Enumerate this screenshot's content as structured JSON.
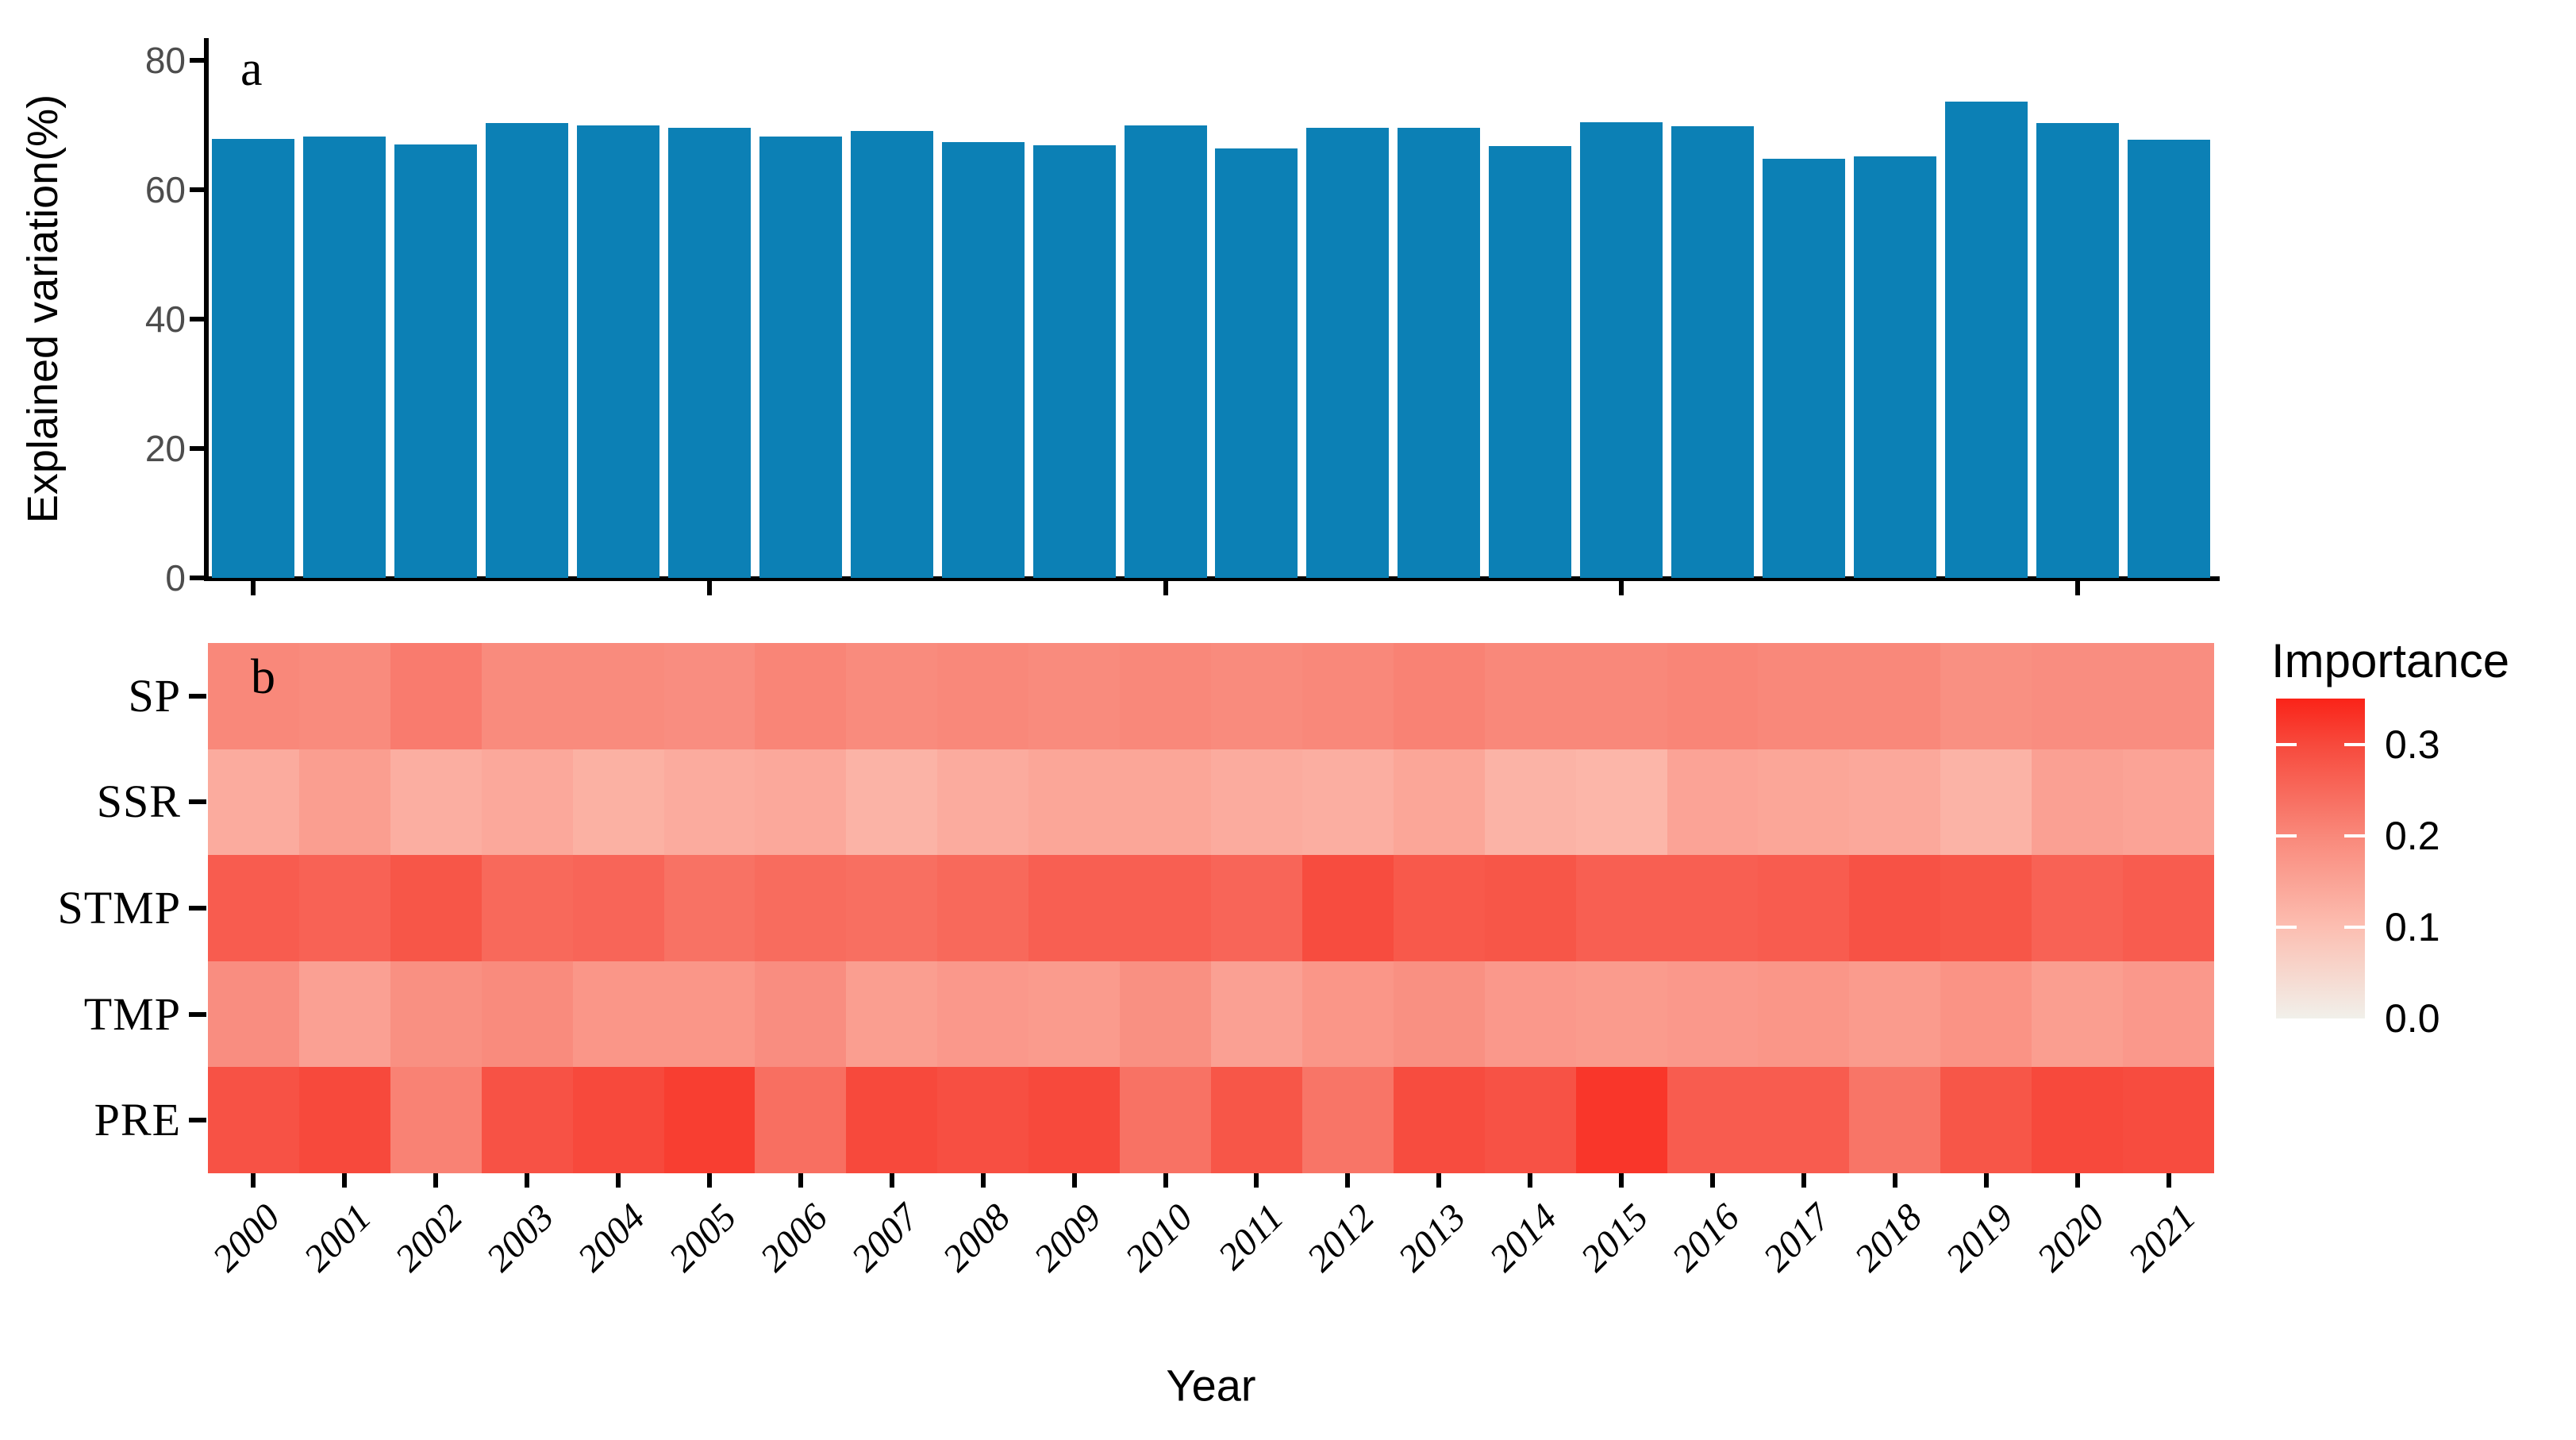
{
  "chart_data": [
    {
      "type": "bar",
      "panel_label": "a",
      "ylabel": "Explained variation(%)",
      "ylim": [
        0,
        80
      ],
      "yticks": [
        0,
        20,
        40,
        60,
        80
      ],
      "x_ticks_shown": [
        2000,
        2005,
        2010,
        2015,
        2020
      ],
      "bar_color": "#0c80b5",
      "categories": [
        2000,
        2001,
        2002,
        2003,
        2004,
        2005,
        2006,
        2007,
        2008,
        2009,
        2010,
        2011,
        2012,
        2013,
        2014,
        2015,
        2016,
        2017,
        2018,
        2019,
        2020,
        2021
      ],
      "values": [
        67.9,
        68.2,
        67.0,
        70.3,
        69.9,
        69.6,
        68.2,
        69.1,
        67.4,
        66.9,
        70.0,
        66.4,
        69.6,
        69.6,
        66.7,
        70.4,
        69.8,
        64.8,
        65.2,
        73.6,
        70.3,
        67.7
      ]
    },
    {
      "type": "heatmap",
      "panel_label": "b",
      "xlabel": "Year",
      "x": [
        2000,
        2001,
        2002,
        2003,
        2004,
        2005,
        2006,
        2007,
        2008,
        2009,
        2010,
        2011,
        2012,
        2013,
        2014,
        2015,
        2016,
        2017,
        2018,
        2019,
        2020,
        2021
      ],
      "rows": [
        "SP",
        "SSR",
        "STMP",
        "TMP",
        "PRE"
      ],
      "series": [
        {
          "name": "SP",
          "values": [
            0.2,
            0.195,
            0.22,
            0.195,
            0.195,
            0.19,
            0.205,
            0.195,
            0.2,
            0.195,
            0.2,
            0.195,
            0.2,
            0.21,
            0.2,
            0.2,
            0.205,
            0.2,
            0.2,
            0.185,
            0.19,
            0.19
          ]
        },
        {
          "name": "SSR",
          "values": [
            0.135,
            0.16,
            0.13,
            0.14,
            0.125,
            0.135,
            0.14,
            0.12,
            0.135,
            0.145,
            0.145,
            0.135,
            0.13,
            0.145,
            0.12,
            0.115,
            0.15,
            0.145,
            0.14,
            0.12,
            0.155,
            0.15
          ]
        },
        {
          "name": "STMP",
          "values": [
            0.27,
            0.26,
            0.28,
            0.25,
            0.255,
            0.235,
            0.245,
            0.24,
            0.25,
            0.265,
            0.265,
            0.255,
            0.295,
            0.275,
            0.28,
            0.265,
            0.265,
            0.27,
            0.285,
            0.28,
            0.26,
            0.27
          ]
        },
        {
          "name": "TMP",
          "values": [
            0.19,
            0.155,
            0.185,
            0.195,
            0.175,
            0.175,
            0.19,
            0.16,
            0.17,
            0.165,
            0.185,
            0.155,
            0.175,
            0.185,
            0.17,
            0.165,
            0.17,
            0.175,
            0.165,
            0.18,
            0.16,
            0.17
          ]
        },
        {
          "name": "PRE",
          "values": [
            0.285,
            0.3,
            0.21,
            0.285,
            0.3,
            0.315,
            0.24,
            0.3,
            0.29,
            0.3,
            0.235,
            0.28,
            0.23,
            0.295,
            0.285,
            0.325,
            0.27,
            0.27,
            0.23,
            0.28,
            0.3,
            0.295
          ]
        }
      ],
      "legend": {
        "title": "Importance",
        "ticks": [
          {
            "label": "0.3",
            "value": 0.3
          },
          {
            "label": "0.2",
            "value": 0.2
          },
          {
            "label": "0.1",
            "value": 0.1
          },
          {
            "label": "0.0",
            "value": 0.0
          }
        ],
        "domain": [
          0,
          0.35
        ],
        "gradient_stops": [
          {
            "value": 0.0,
            "color": "#f1f0ea"
          },
          {
            "value": 0.1,
            "color": "#fcbeb1"
          },
          {
            "value": 0.2,
            "color": "#f9887a"
          },
          {
            "value": 0.3,
            "color": "#f7493c"
          },
          {
            "value": 0.35,
            "color": "#fa2318"
          }
        ]
      }
    }
  ]
}
